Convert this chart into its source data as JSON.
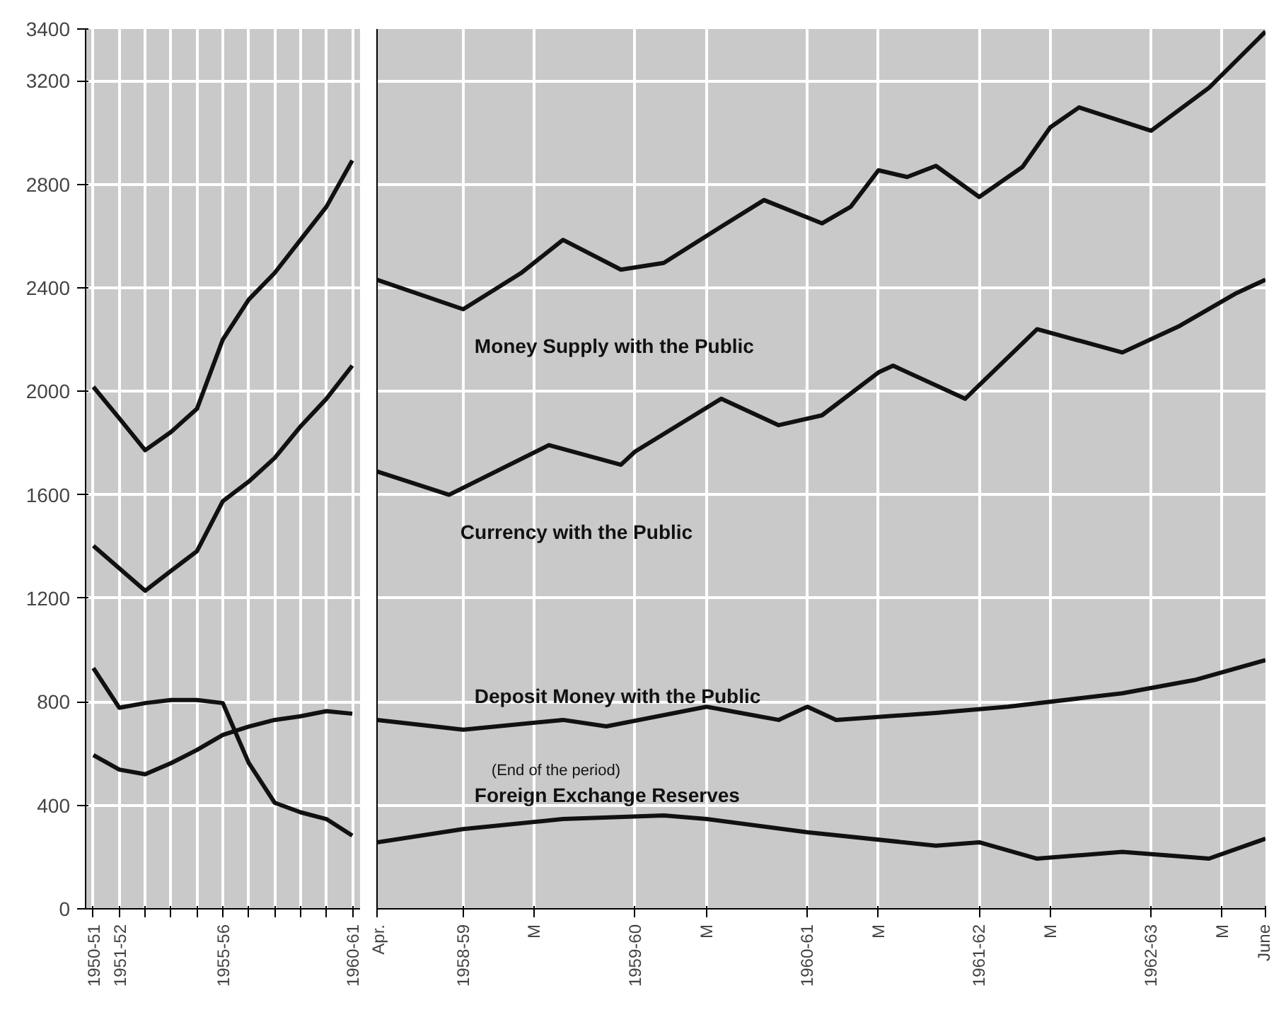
{
  "chart_data": [
    {
      "type": "line",
      "categories": [
        "1950-51",
        "1951-52",
        null,
        null,
        null,
        "1955-56",
        null,
        null,
        null,
        null,
        "1960-61"
      ],
      "ylim": [
        0,
        3400
      ],
      "yticks": [
        0,
        400,
        800,
        1200,
        1600,
        2000,
        2400,
        2800,
        3200,
        3400
      ],
      "grid": true,
      "series": [
        {
          "color": "#111111",
          "values": [
            2017,
            1896,
            1772,
            1843,
            1932,
            2200,
            2354,
            2457,
            2585,
            2713,
            2892
          ]
        },
        {
          "color": "#111111",
          "values": [
            1403,
            1316,
            1229,
            1306,
            1382,
            1575,
            1651,
            1742,
            1864,
            1971,
            2099
          ]
        },
        {
          "color": "#111111",
          "values": [
            594,
            538,
            520,
            563,
            614,
            672,
            704,
            730,
            744,
            764,
            754
          ]
        },
        {
          "color": "#111111",
          "values": [
            930,
            777,
            795,
            807,
            807,
            795,
            564,
            410,
            373,
            347,
            283
          ]
        }
      ]
    },
    {
      "type": "line",
      "xlim": [
        "1958-04",
        "1963-06"
      ],
      "ylim": [
        0,
        3400
      ],
      "yticks": [
        0,
        400,
        800,
        1200,
        1600,
        2000,
        2400,
        2800,
        3200,
        3400
      ],
      "tick_labels": "x",
      "grid": true,
      "xticks": [
        {
          "value": "1958-04",
          "label": "Apr."
        },
        {
          "value": "1958-10",
          "label": "1958-59"
        },
        {
          "value": "1959-03",
          "label": "M"
        },
        {
          "value": "1959-10",
          "label": "1959-60"
        },
        {
          "value": "1960-03",
          "label": "M"
        },
        {
          "value": "1960-10",
          "label": "1960-61"
        },
        {
          "value": "1961-03",
          "label": "M"
        },
        {
          "value": "1961-10",
          "label": "1961-62"
        },
        {
          "value": "1962-03",
          "label": "M"
        },
        {
          "value": "1962-10",
          "label": "1962-63"
        },
        {
          "value": "1963-03",
          "label": "M"
        },
        {
          "value": "1963-06",
          "label": "June"
        }
      ],
      "annotations": [
        "(End of the period)"
      ],
      "series": [
        {
          "name": "Money Supply with the Public",
          "color": "#111111",
          "x": [
            "1958-04",
            "1958-10",
            "1959-02",
            "1959-05",
            "1959-09",
            "1959-12",
            "1960-04",
            "1960-07",
            "1960-11",
            "1961-01",
            "1961-03",
            "1961-05",
            "1961-07",
            "1961-10",
            "1962-01",
            "1962-03",
            "1962-05",
            "1962-10",
            "1963-02",
            "1963-06"
          ],
          "values": [
            2431,
            2317,
            2457,
            2585,
            2470,
            2496,
            2636,
            2739,
            2649,
            2713,
            2854,
            2828,
            2871,
            2751,
            2867,
            3020,
            3097,
            3007,
            3173,
            3390
          ]
        },
        {
          "name": "Currency with the Public",
          "color": "#111111",
          "x": [
            "1958-04",
            "1958-09",
            "1959-04",
            "1959-09",
            "1959-10",
            "1960-04",
            "1960-08",
            "1960-11",
            "1961-03",
            "1961-04",
            "1961-09",
            "1962-02",
            "1962-08",
            "1962-12",
            "1963-04",
            "1963-06"
          ],
          "values": [
            1690,
            1600,
            1792,
            1716,
            1767,
            1971,
            1869,
            1907,
            2073,
            2099,
            1971,
            2240,
            2150,
            2253,
            2380,
            2431
          ]
        },
        {
          "name": "Deposit Money with the Public",
          "color": "#111111",
          "x": [
            "1958-04",
            "1958-10",
            "1959-05",
            "1959-08",
            "1960-03",
            "1960-08",
            "1960-10",
            "1960-12",
            "1961-07",
            "1961-12",
            "1962-08",
            "1963-01",
            "1963-06"
          ],
          "values": [
            730,
            692,
            730,
            705,
            781,
            730,
            781,
            730,
            757,
            781,
            833,
            884,
            961
          ]
        },
        {
          "name": "Foreign Exchange Reserves",
          "color": "#111111",
          "x": [
            "1958-04",
            "1958-10",
            "1959-05",
            "1959-12",
            "1960-03",
            "1960-10",
            "1961-07",
            "1961-10",
            "1962-02",
            "1962-08",
            "1963-02",
            "1963-06"
          ],
          "values": [
            257,
            308,
            347,
            361,
            347,
            296,
            244,
            257,
            194,
            220,
            194,
            271
          ]
        }
      ]
    }
  ]
}
